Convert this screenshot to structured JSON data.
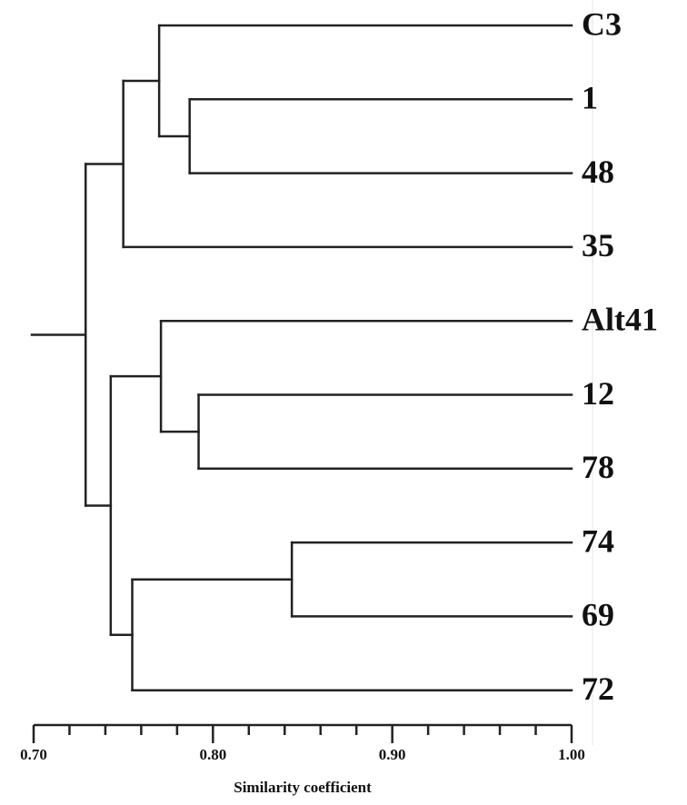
{
  "chart_data": {
    "type": "dendrogram",
    "x_label": "Similarity coefficient",
    "xlim": [
      0.7,
      1.0
    ],
    "xticks": [
      {
        "value": 0.7,
        "label": "0.70"
      },
      {
        "value": 0.8,
        "label": "0.80"
      },
      {
        "value": 0.9,
        "label": "0.90"
      },
      {
        "value": 1.0,
        "label": "1.00"
      }
    ],
    "xminorticks": [
      0.72,
      0.74,
      0.76,
      0.78,
      0.82,
      0.84,
      0.86,
      0.88,
      0.92,
      0.94,
      0.96,
      0.98
    ],
    "tree": {
      "height": 0.729,
      "children": [
        {
          "height": 0.75,
          "children": [
            {
              "height": 0.77,
              "children": [
                {
                  "label": "C3"
                },
                {
                  "height": 0.787,
                  "children": [
                    {
                      "label": "1"
                    },
                    {
                      "label": "48"
                    }
                  ]
                }
              ]
            },
            {
              "label": "35"
            }
          ]
        },
        {
          "height": 0.743,
          "children": [
            {
              "height": 0.771,
              "children": [
                {
                  "label": "Alt41"
                },
                {
                  "height": 0.792,
                  "children": [
                    {
                      "label": "12"
                    },
                    {
                      "label": "78"
                    }
                  ]
                }
              ]
            },
            {
              "height": 0.755,
              "children": [
                {
                  "height": 0.844,
                  "children": [
                    {
                      "label": "74"
                    },
                    {
                      "label": "69"
                    }
                  ]
                },
                {
                  "label": "72"
                }
              ]
            }
          ]
        }
      ]
    }
  }
}
